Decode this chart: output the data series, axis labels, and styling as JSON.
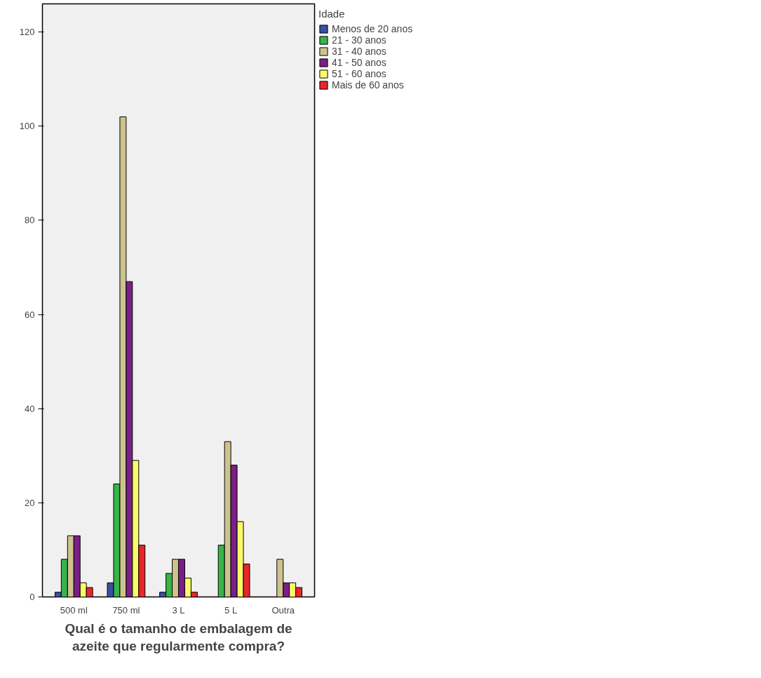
{
  "chart_data": {
    "type": "bar",
    "xlabel": "Qual é o tamanho de embalagem de azeite que regularmente compra?",
    "legend_title": "Idade",
    "categories": [
      "500 ml",
      "750 ml",
      "3 L",
      "5 L",
      "Outra"
    ],
    "series": [
      {
        "name": "Menos de 20 anos",
        "color": "#3a4fa0",
        "values": [
          1,
          3,
          1,
          null,
          null
        ]
      },
      {
        "name": "21 - 30 anos",
        "color": "#37b44a",
        "values": [
          8,
          24,
          5,
          11,
          null
        ]
      },
      {
        "name": "31 - 40 anos",
        "color": "#cdc38f",
        "values": [
          13,
          102,
          8,
          33,
          8
        ]
      },
      {
        "name": "41 - 50 anos",
        "color": "#7b1f86",
        "values": [
          13,
          67,
          8,
          28,
          3
        ]
      },
      {
        "name": "51 - 60 anos",
        "color": "#fbfb6a",
        "values": [
          3,
          29,
          4,
          16,
          3
        ]
      },
      {
        "name": "Mais de 60 anos",
        "color": "#e8262b",
        "values": [
          2,
          11,
          1,
          7,
          2
        ]
      }
    ],
    "ylim": [
      0,
      126
    ],
    "yticks": [
      0,
      20,
      40,
      60,
      80,
      100,
      120
    ],
    "grid": false,
    "legend": "top right"
  }
}
